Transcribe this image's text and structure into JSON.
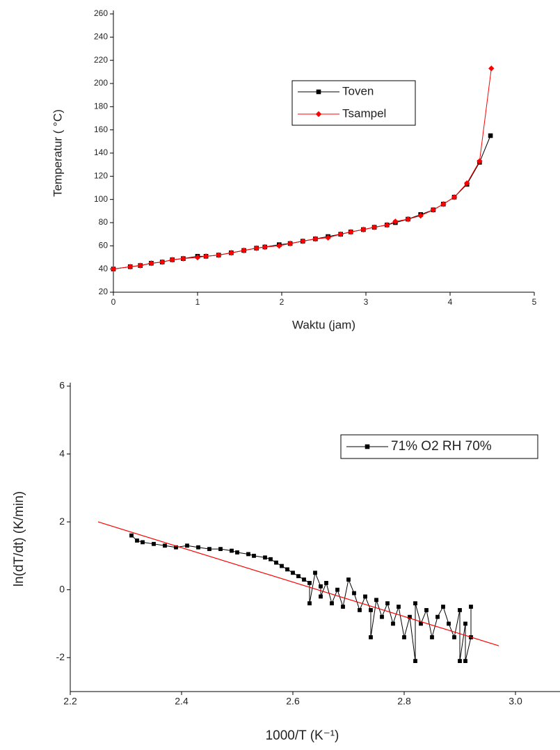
{
  "chart_data": [
    {
      "type": "line",
      "x_label": "Waktu (jam)",
      "y_label": "Temperatur ( °C)",
      "xlim": [
        0,
        5
      ],
      "ylim": [
        20,
        260
      ],
      "xticks": [
        0,
        1,
        2,
        3,
        4,
        5
      ],
      "yticks": [
        20,
        40,
        60,
        80,
        100,
        120,
        140,
        160,
        180,
        200,
        220,
        240,
        260
      ],
      "series": [
        {
          "name": "Toven",
          "color": "#000000",
          "marker": "square",
          "x": [
            0,
            0.2,
            0.32,
            0.45,
            0.58,
            0.7,
            0.83,
            1.0,
            1.1,
            1.25,
            1.4,
            1.55,
            1.7,
            1.8,
            1.97,
            2.1,
            2.25,
            2.4,
            2.55,
            2.7,
            2.82,
            2.97,
            3.1,
            3.25,
            3.35,
            3.5,
            3.65,
            3.8,
            3.92,
            4.05,
            4.2,
            4.35,
            4.48
          ],
          "values": [
            40,
            42,
            43,
            45,
            46,
            48,
            49,
            51,
            51,
            52,
            54,
            56,
            58,
            59,
            61,
            62,
            64,
            66,
            68,
            70,
            72,
            74,
            76,
            78,
            80,
            83,
            87,
            91,
            96,
            102,
            113,
            132,
            155
          ]
        },
        {
          "name": "Tsampel",
          "color": "#ff0000",
          "marker": "diamond",
          "x": [
            0,
            0.2,
            0.32,
            0.45,
            0.58,
            0.7,
            0.83,
            1.0,
            1.1,
            1.25,
            1.4,
            1.55,
            1.7,
            1.8,
            1.97,
            2.1,
            2.25,
            2.4,
            2.55,
            2.7,
            2.82,
            2.97,
            3.1,
            3.25,
            3.35,
            3.5,
            3.65,
            3.8,
            3.92,
            4.05,
            4.2,
            4.35,
            4.49
          ],
          "values": [
            40,
            42,
            43,
            45,
            46,
            48,
            49,
            50,
            51,
            52,
            54,
            56,
            58,
            59,
            60,
            62,
            64,
            66,
            67,
            70,
            72,
            74,
            76,
            78,
            81,
            83,
            86,
            91,
            96,
            102,
            114,
            133,
            213
          ]
        }
      ]
    },
    {
      "type": "scatter",
      "connect": true,
      "x_label": "1000/T (K⁻¹)",
      "y_label": "ln(dT/dt) (K/min)",
      "xlim": [
        2.2,
        3.08
      ],
      "ylim": [
        -3,
        6
      ],
      "xticks": [
        {
          "value": 2.2,
          "label": "2.2"
        },
        {
          "value": 2.4,
          "label": "2.4"
        },
        {
          "value": 2.6,
          "label": "2.6"
        },
        {
          "value": 2.8,
          "label": "2.8"
        },
        {
          "value": 3.0,
          "label": "3.0"
        }
      ],
      "yticks": [
        -2,
        0,
        2,
        4,
        6
      ],
      "series": [
        {
          "name": "71% O2 RH 70%",
          "color": "#000000",
          "marker": "square",
          "x": [
            2.31,
            2.32,
            2.33,
            2.35,
            2.37,
            2.39,
            2.41,
            2.43,
            2.45,
            2.47,
            2.49,
            2.5,
            2.52,
            2.53,
            2.55,
            2.56,
            2.57,
            2.58,
            2.59,
            2.6,
            2.61,
            2.62,
            2.63,
            2.63,
            2.64,
            2.65,
            2.65,
            2.66,
            2.67,
            2.68,
            2.69,
            2.7,
            2.71,
            2.72,
            2.73,
            2.74,
            2.74,
            2.75,
            2.76,
            2.77,
            2.78,
            2.79,
            2.8,
            2.81,
            2.82,
            2.82,
            2.83,
            2.84,
            2.85,
            2.86,
            2.87,
            2.88,
            2.89,
            2.9,
            2.9,
            2.91,
            2.91,
            2.92,
            2.92
          ],
          "values": [
            1.6,
            1.45,
            1.4,
            1.35,
            1.3,
            1.25,
            1.3,
            1.25,
            1.2,
            1.2,
            1.15,
            1.1,
            1.05,
            1.0,
            0.95,
            0.9,
            0.8,
            0.7,
            0.6,
            0.5,
            0.4,
            0.3,
            0.2,
            -0.4,
            0.5,
            0.1,
            -0.2,
            0.2,
            -0.4,
            0.0,
            -0.5,
            0.3,
            -0.1,
            -0.6,
            -0.2,
            -0.6,
            -1.4,
            -0.3,
            -0.8,
            -0.4,
            -1.0,
            -0.5,
            -1.4,
            -0.8,
            -2.1,
            -0.4,
            -1.0,
            -0.6,
            -1.4,
            -0.8,
            -0.5,
            -1.0,
            -1.4,
            -0.6,
            -2.1,
            -1.0,
            -2.1,
            -1.4,
            -0.5
          ]
        }
      ],
      "fit_line": {
        "color": "#ff0000",
        "x": [
          2.25,
          2.97
        ],
        "values": [
          2.0,
          -1.65
        ]
      }
    }
  ]
}
